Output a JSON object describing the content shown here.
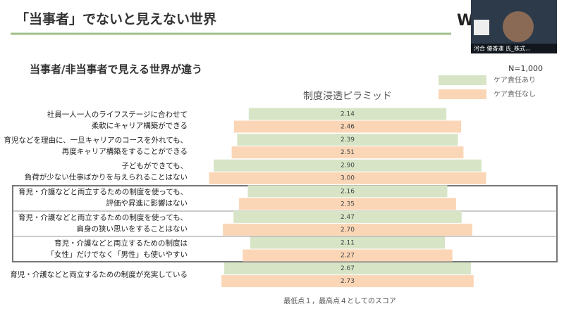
{
  "slide": {
    "title": "「当事者」でないと見えない世界",
    "subtitle": "当事者/非当事者で見える世界が違う",
    "logo": "W"
  },
  "video": {
    "name": "河合 優香運 氏_株式..."
  },
  "chart_data": {
    "type": "pyramid",
    "title": "制度浸透ピラミッド",
    "note": "N=1,000",
    "footnote": "最低点１，最高点４としてのスコア",
    "categories": [
      [
        "社員一人一人のライフステージに合わせて",
        "柔軟にキャリア構築ができる"
      ],
      [
        "育児などを理由に、一旦キャリアのコースを外れても、",
        "再度キャリア構築をすることができる"
      ],
      [
        "子どもができても、",
        "負荷が少ない仕事ばかりを与えられることはない"
      ],
      [
        "育児・介護などと両立するための制度を使っても、",
        "評価や昇進に影響はない"
      ],
      [
        "育児・介護などと両立するための制度を使っても、",
        "肩身の狭い思いをすることはない"
      ],
      [
        "育児・介護などと両立するための制度は",
        "「女性」だけでなく「男性」も使いやすい"
      ],
      [
        "育児・介護などと両立するための制度が充実している"
      ]
    ],
    "series": [
      {
        "name": "ケア責任あり",
        "color": "#d7e5c6",
        "values": [
          2.14,
          2.39,
          2.9,
          2.16,
          2.47,
          2.11,
          2.67
        ],
        "value_labels": [
          "2.14",
          "2.39",
          "2.90",
          "2.16",
          "2.47",
          "2.11",
          "2.67"
        ]
      },
      {
        "name": "ケア責任なし",
        "color": "#fbd6b6",
        "values": [
          2.46,
          2.51,
          3,
          2.35,
          2.7,
          2.27,
          2.73
        ],
        "value_labels": [
          "2.46",
          "2.51",
          "3.00",
          "2.35",
          "2.70",
          "2.27",
          "2.73"
        ]
      }
    ]
  }
}
